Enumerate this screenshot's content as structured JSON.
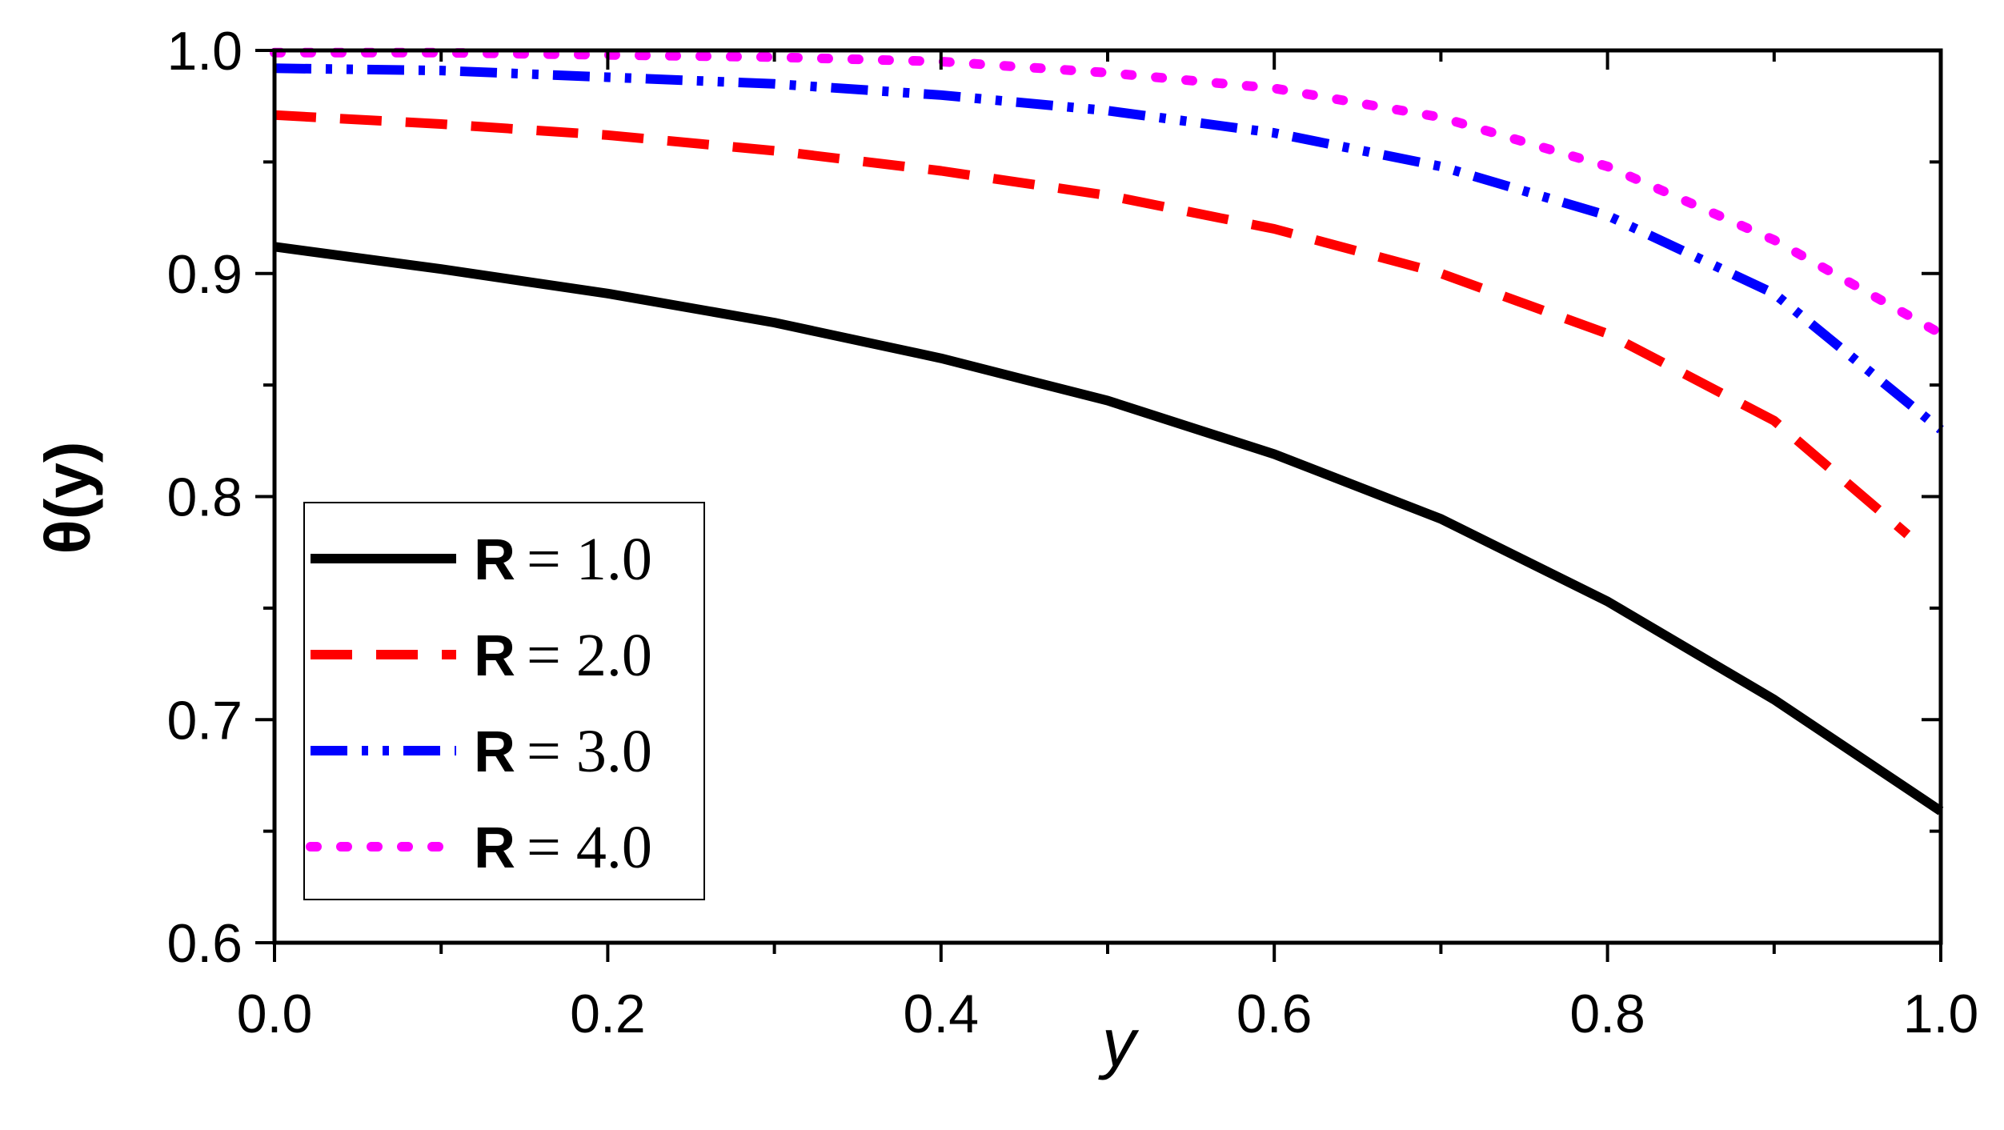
{
  "chart_data": {
    "type": "line",
    "title": "",
    "xlabel": "y",
    "ylabel": "θ(y)",
    "xlim": [
      0.0,
      1.0
    ],
    "ylim": [
      0.6,
      1.0
    ],
    "x_ticks": [
      "0.0",
      "0.2",
      "0.4",
      "0.6",
      "0.8",
      "1.0"
    ],
    "y_ticks": [
      "0.6",
      "0.7",
      "0.8",
      "0.9",
      "1.0"
    ],
    "grid": false,
    "legend_position": "bottom-left",
    "x": [
      0.0,
      0.1,
      0.2,
      0.3,
      0.4,
      0.5,
      0.6,
      0.7,
      0.8,
      0.9,
      1.0
    ],
    "series": [
      {
        "name": "R = 1.0",
        "var": "R",
        "value_text": "= 1.0",
        "color": "#000000",
        "style": "solid",
        "values": [
          0.912,
          0.902,
          0.891,
          0.878,
          0.862,
          0.843,
          0.819,
          0.79,
          0.753,
          0.709,
          0.659
        ]
      },
      {
        "name": "R = 2.0",
        "var": "R",
        "value_text": "= 2.0",
        "color": "#ff0000",
        "style": "dashed",
        "x_end": 0.98,
        "values": [
          0.971,
          0.967,
          0.962,
          0.955,
          0.946,
          0.935,
          0.92,
          0.9,
          0.873,
          0.834,
          0.783
        ]
      },
      {
        "name": "R = 3.0",
        "var": "R",
        "value_text": "= 3.0",
        "color": "#0000ff",
        "style": "dashdotdot",
        "values": [
          0.992,
          0.991,
          0.988,
          0.985,
          0.98,
          0.973,
          0.963,
          0.948,
          0.926,
          0.891,
          0.83
        ]
      },
      {
        "name": "R = 4.0",
        "var": "R",
        "value_text": "= 4.0",
        "color": "#ff00ff",
        "style": "dotted",
        "values": [
          0.999,
          0.999,
          0.998,
          0.997,
          0.995,
          0.99,
          0.983,
          0.97,
          0.948,
          0.915,
          0.873
        ]
      }
    ]
  }
}
